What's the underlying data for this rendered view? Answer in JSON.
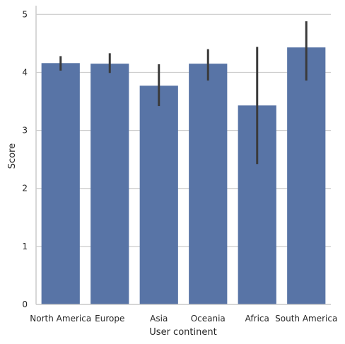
{
  "chart_data": {
    "type": "bar",
    "categories": [
      "North America",
      "Europe",
      "Asia",
      "Oceania",
      "Africa",
      "South America"
    ],
    "values": [
      4.16,
      4.15,
      3.77,
      4.15,
      3.43,
      4.43
    ],
    "error_bars": [
      [
        4.03,
        4.28
      ],
      [
        3.99,
        4.33
      ],
      [
        3.42,
        4.14
      ],
      [
        3.86,
        4.4
      ],
      [
        2.42,
        4.44
      ],
      [
        3.86,
        4.88
      ]
    ],
    "xlabel": "User continent",
    "ylabel": "Score",
    "ylim": [
      0,
      5.15
    ],
    "yticks": [
      0,
      1,
      2,
      3,
      4,
      5
    ],
    "grid": "horizontal",
    "colors": {
      "bar": "#5874a6",
      "error": "#3a3a3a",
      "grid": "#cccccc",
      "axis": "#cccccc"
    }
  }
}
